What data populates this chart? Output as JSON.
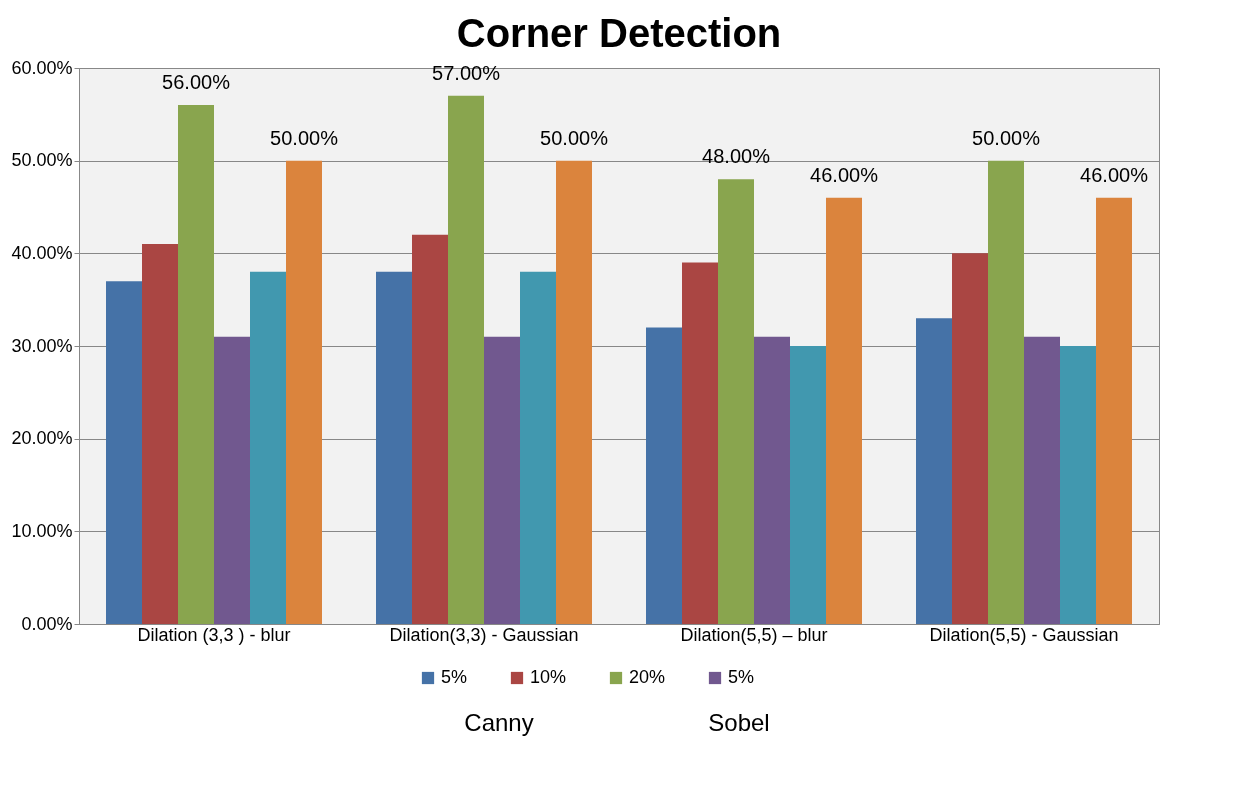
{
  "chart_data": {
    "type": "bar",
    "title": "Corner Detection",
    "categories": [
      "Dilation (3,3 ) - blur",
      "Dilation(3,3) - Gaussian",
      "Dilation(5,5) – blur",
      "Dilation(5,5) - Gaussian"
    ],
    "series": [
      {
        "name": "5%",
        "color": "#4572a7",
        "values": [
          37,
          38,
          32,
          33
        ]
      },
      {
        "name": "10%",
        "color": "#aa4643",
        "values": [
          41,
          42,
          39,
          40
        ]
      },
      {
        "name": "20%",
        "color": "#89a54e",
        "values": [
          56,
          57,
          48,
          50
        ],
        "value_labels": [
          "56.00%",
          "57.00%",
          "48.00%",
          "50.00%"
        ]
      },
      {
        "name": "5%",
        "color": "#71588f",
        "values": [
          31,
          31,
          31,
          31
        ]
      },
      {
        "color": "#4198af",
        "values": [
          38,
          38,
          30,
          30
        ]
      },
      {
        "color": "#db843d",
        "values": [
          50,
          50,
          46,
          46
        ],
        "value_labels": [
          "50.00%",
          "50.00%",
          "46.00%",
          "46.00%"
        ]
      }
    ],
    "ylim": [
      0,
      60
    ],
    "yticks": [
      {
        "value": 0,
        "label": "0.00%"
      },
      {
        "value": 10,
        "label": "10.00%"
      },
      {
        "value": 20,
        "label": "20.00%"
      },
      {
        "value": 30,
        "label": "30.00%"
      },
      {
        "value": 40,
        "label": "40.00%"
      },
      {
        "value": 50,
        "label": "50.00%"
      },
      {
        "value": 60,
        "label": "60.00%"
      }
    ],
    "grid": "y",
    "legend": "bottom",
    "annotations": [
      "Canny",
      "Sobel"
    ]
  }
}
